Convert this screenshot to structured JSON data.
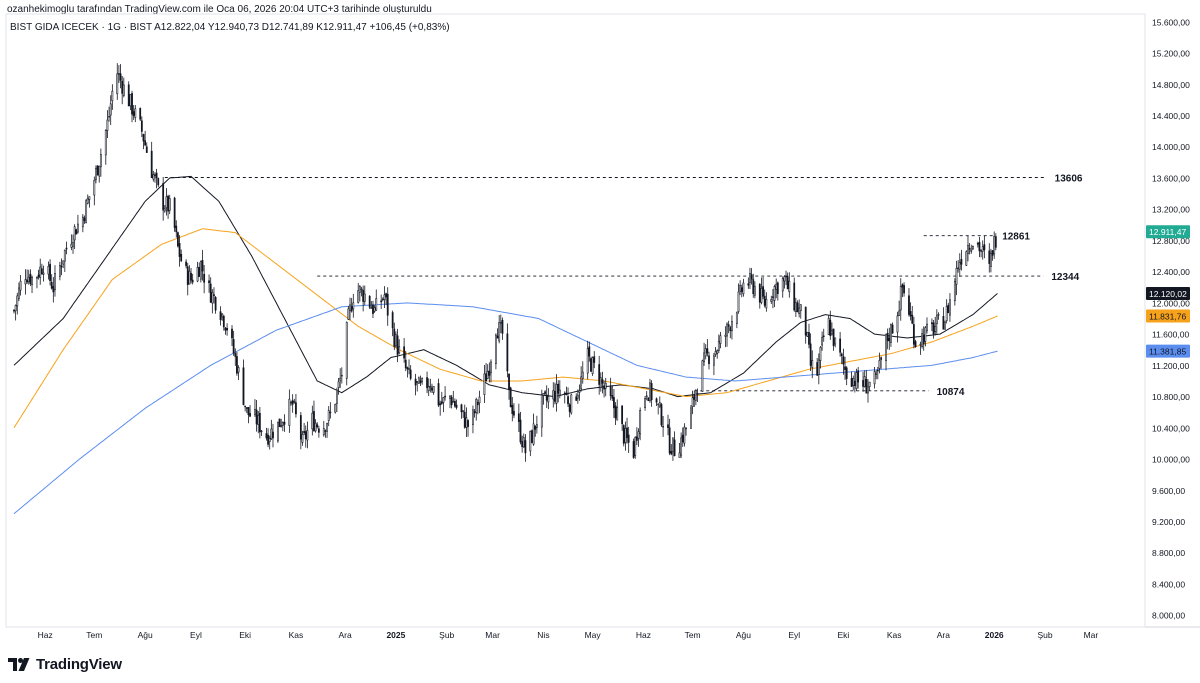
{
  "header": {
    "credit": "ozanhekimoglu tarafından TradingView.com ile Oca 06, 2026 20:04 UTC+3 tarihinde oluşturuldu",
    "symbol_line": "BIST GIDA ICECEK · 1G · BIST   A12.822,04   Y12.940,73   D12.741,89   K12.911,47   +106,45 (+0,83%)"
  },
  "brand": {
    "name": "TradingView"
  },
  "chart_data": {
    "type": "candlestick",
    "ylim": [
      7900,
      15700
    ],
    "x_range_days": [
      0,
      648
    ],
    "price_scale_ticks": [
      "15.600,00",
      "15.200,00",
      "14.800,00",
      "14.400,00",
      "14.000,00",
      "13.600,00",
      "13.200,00",
      "12.800,00",
      "12.400,00",
      "12.000,00",
      "11.600,00",
      "11.200,00",
      "10.800,00",
      "10.400,00",
      "10.000,00",
      "9.600,00",
      "9.200,00",
      "8.800,00",
      "8.400,00",
      "8.000,00"
    ],
    "price_scale_values": [
      15600,
      15200,
      14800,
      14400,
      14000,
      13600,
      13200,
      12800,
      12400,
      12000,
      11600,
      11200,
      10800,
      10400,
      10000,
      9600,
      9200,
      8800,
      8400,
      8000
    ],
    "time_labels": [
      {
        "label": "Haz",
        "day": 19,
        "bold": false
      },
      {
        "label": "Tem",
        "day": 49,
        "bold": false
      },
      {
        "label": "Ağu",
        "day": 80,
        "bold": false
      },
      {
        "label": "Eyl",
        "day": 111,
        "bold": false
      },
      {
        "label": "Eki",
        "day": 141,
        "bold": false
      },
      {
        "label": "Kas",
        "day": 172,
        "bold": false
      },
      {
        "label": "Ara",
        "day": 202,
        "bold": false
      },
      {
        "label": "2025",
        "day": 233,
        "bold": true
      },
      {
        "label": "Şub",
        "day": 264,
        "bold": false
      },
      {
        "label": "Mar",
        "day": 292,
        "bold": false
      },
      {
        "label": "Nis",
        "day": 323,
        "bold": false
      },
      {
        "label": "May",
        "day": 353,
        "bold": false
      },
      {
        "label": "Haz",
        "day": 384,
        "bold": false
      },
      {
        "label": "Tem",
        "day": 414,
        "bold": false
      },
      {
        "label": "Ağu",
        "day": 445,
        "bold": false
      },
      {
        "label": "Eyl",
        "day": 476,
        "bold": false
      },
      {
        "label": "Eki",
        "day": 506,
        "bold": false
      },
      {
        "label": "Kas",
        "day": 537,
        "bold": false
      },
      {
        "label": "Ara",
        "day": 567,
        "bold": false
      },
      {
        "label": "2026",
        "day": 598,
        "bold": true
      },
      {
        "label": "Şub",
        "day": 629,
        "bold": false
      },
      {
        "label": "Mar",
        "day": 657,
        "bold": false
      }
    ],
    "close_anchors": [
      {
        "day": 0,
        "value": 11900
      },
      {
        "day": 6,
        "value": 12400
      },
      {
        "day": 12,
        "value": 12300
      },
      {
        "day": 18,
        "value": 12500
      },
      {
        "day": 24,
        "value": 12200
      },
      {
        "day": 30,
        "value": 12600
      },
      {
        "day": 36,
        "value": 12900
      },
      {
        "day": 42,
        "value": 13100
      },
      {
        "day": 48,
        "value": 13500
      },
      {
        "day": 54,
        "value": 14000
      },
      {
        "day": 58,
        "value": 14400
      },
      {
        "day": 62,
        "value": 15000
      },
      {
        "day": 66,
        "value": 14800
      },
      {
        "day": 72,
        "value": 14500
      },
      {
        "day": 78,
        "value": 14200
      },
      {
        "day": 84,
        "value": 13700
      },
      {
        "day": 90,
        "value": 13300
      },
      {
        "day": 96,
        "value": 13200
      },
      {
        "day": 100,
        "value": 12700
      },
      {
        "day": 104,
        "value": 12400
      },
      {
        "day": 108,
        "value": 12300
      },
      {
        "day": 114,
        "value": 12500
      },
      {
        "day": 118,
        "value": 12200
      },
      {
        "day": 124,
        "value": 12000
      },
      {
        "day": 130,
        "value": 11700
      },
      {
        "day": 136,
        "value": 11200
      },
      {
        "day": 142,
        "value": 10600
      },
      {
        "day": 148,
        "value": 10500
      },
      {
        "day": 154,
        "value": 10300
      },
      {
        "day": 160,
        "value": 10400
      },
      {
        "day": 166,
        "value": 10600
      },
      {
        "day": 170,
        "value": 10700
      },
      {
        "day": 176,
        "value": 10200
      },
      {
        "day": 182,
        "value": 10500
      },
      {
        "day": 188,
        "value": 10400
      },
      {
        "day": 194,
        "value": 10600
      },
      {
        "day": 200,
        "value": 11100
      },
      {
        "day": 204,
        "value": 11800
      },
      {
        "day": 208,
        "value": 12200
      },
      {
        "day": 214,
        "value": 12100
      },
      {
        "day": 220,
        "value": 11900
      },
      {
        "day": 226,
        "value": 12100
      },
      {
        "day": 230,
        "value": 11700
      },
      {
        "day": 236,
        "value": 11300
      },
      {
        "day": 242,
        "value": 11000
      },
      {
        "day": 248,
        "value": 10900
      },
      {
        "day": 254,
        "value": 11000
      },
      {
        "day": 260,
        "value": 10700
      },
      {
        "day": 266,
        "value": 10800
      },
      {
        "day": 272,
        "value": 10600
      },
      {
        "day": 278,
        "value": 10400
      },
      {
        "day": 284,
        "value": 10800
      },
      {
        "day": 290,
        "value": 11200
      },
      {
        "day": 294,
        "value": 11700
      },
      {
        "day": 298,
        "value": 11600
      },
      {
        "day": 302,
        "value": 10800
      },
      {
        "day": 308,
        "value": 10400
      },
      {
        "day": 312,
        "value": 10100
      },
      {
        "day": 316,
        "value": 10300
      },
      {
        "day": 322,
        "value": 10700
      },
      {
        "day": 328,
        "value": 10800
      },
      {
        "day": 334,
        "value": 10900
      },
      {
        "day": 340,
        "value": 10700
      },
      {
        "day": 346,
        "value": 11000
      },
      {
        "day": 350,
        "value": 11300
      },
      {
        "day": 356,
        "value": 11100
      },
      {
        "day": 362,
        "value": 10800
      },
      {
        "day": 368,
        "value": 10600
      },
      {
        "day": 372,
        "value": 10300
      },
      {
        "day": 378,
        "value": 10100
      },
      {
        "day": 382,
        "value": 10600
      },
      {
        "day": 386,
        "value": 10900
      },
      {
        "day": 390,
        "value": 10800
      },
      {
        "day": 396,
        "value": 10500
      },
      {
        "day": 400,
        "value": 10200
      },
      {
        "day": 404,
        "value": 10100
      },
      {
        "day": 408,
        "value": 10300
      },
      {
        "day": 412,
        "value": 10500
      },
      {
        "day": 416,
        "value": 10900
      },
      {
        "day": 422,
        "value": 11300
      },
      {
        "day": 428,
        "value": 11400
      },
      {
        "day": 434,
        "value": 11600
      },
      {
        "day": 440,
        "value": 11900
      },
      {
        "day": 446,
        "value": 12300
      },
      {
        "day": 452,
        "value": 12200
      },
      {
        "day": 458,
        "value": 12000
      },
      {
        "day": 464,
        "value": 12200
      },
      {
        "day": 470,
        "value": 12300
      },
      {
        "day": 476,
        "value": 12000
      },
      {
        "day": 482,
        "value": 11800
      },
      {
        "day": 486,
        "value": 11200
      },
      {
        "day": 490,
        "value": 11100
      },
      {
        "day": 496,
        "value": 11800
      },
      {
        "day": 502,
        "value": 11400
      },
      {
        "day": 508,
        "value": 11100
      },
      {
        "day": 514,
        "value": 11000
      },
      {
        "day": 520,
        "value": 10950
      },
      {
        "day": 526,
        "value": 11000
      },
      {
        "day": 532,
        "value": 11500
      },
      {
        "day": 538,
        "value": 11800
      },
      {
        "day": 542,
        "value": 12200
      },
      {
        "day": 546,
        "value": 11900
      },
      {
        "day": 550,
        "value": 11500
      },
      {
        "day": 556,
        "value": 11600
      },
      {
        "day": 562,
        "value": 11700
      },
      {
        "day": 568,
        "value": 11800
      },
      {
        "day": 572,
        "value": 12100
      },
      {
        "day": 576,
        "value": 12500
      },
      {
        "day": 580,
        "value": 12700
      },
      {
        "day": 584,
        "value": 12800
      },
      {
        "day": 588,
        "value": 12750
      },
      {
        "day": 592,
        "value": 12600
      },
      {
        "day": 594,
        "value": 12300
      },
      {
        "day": 597,
        "value": 12700
      },
      {
        "day": 600,
        "value": 12911
      }
    ],
    "moving_averages": [
      {
        "name": "",
        "color": "#131722",
        "last": "12.120,02",
        "last_value": 12120.02,
        "anchors": [
          {
            "day": 0,
            "value": 11200
          },
          {
            "day": 30,
            "value": 11800
          },
          {
            "day": 60,
            "value": 12700
          },
          {
            "day": 80,
            "value": 13300
          },
          {
            "day": 95,
            "value": 13600
          },
          {
            "day": 108,
            "value": 13620
          },
          {
            "day": 125,
            "value": 13300
          },
          {
            "day": 145,
            "value": 12600
          },
          {
            "day": 165,
            "value": 11800
          },
          {
            "day": 185,
            "value": 11000
          },
          {
            "day": 200,
            "value": 10850
          },
          {
            "day": 215,
            "value": 11050
          },
          {
            "day": 230,
            "value": 11300
          },
          {
            "day": 250,
            "value": 11400
          },
          {
            "day": 270,
            "value": 11200
          },
          {
            "day": 290,
            "value": 10950
          },
          {
            "day": 310,
            "value": 10850
          },
          {
            "day": 330,
            "value": 10800
          },
          {
            "day": 350,
            "value": 10900
          },
          {
            "day": 370,
            "value": 10950
          },
          {
            "day": 390,
            "value": 10900
          },
          {
            "day": 405,
            "value": 10800
          },
          {
            "day": 425,
            "value": 10850
          },
          {
            "day": 445,
            "value": 11100
          },
          {
            "day": 465,
            "value": 11500
          },
          {
            "day": 480,
            "value": 11750
          },
          {
            "day": 495,
            "value": 11850
          },
          {
            "day": 510,
            "value": 11800
          },
          {
            "day": 525,
            "value": 11600
          },
          {
            "day": 545,
            "value": 11550
          },
          {
            "day": 565,
            "value": 11600
          },
          {
            "day": 585,
            "value": 11850
          },
          {
            "day": 600,
            "value": 12120
          }
        ]
      },
      {
        "name": "",
        "color": "#f7a21b",
        "last": "11.831,76",
        "last_value": 11831.76,
        "anchors": [
          {
            "day": 0,
            "value": 10400
          },
          {
            "day": 30,
            "value": 11400
          },
          {
            "day": 60,
            "value": 12300
          },
          {
            "day": 90,
            "value": 12750
          },
          {
            "day": 115,
            "value": 12950
          },
          {
            "day": 135,
            "value": 12900
          },
          {
            "day": 160,
            "value": 12500
          },
          {
            "day": 185,
            "value": 12100
          },
          {
            "day": 210,
            "value": 11700
          },
          {
            "day": 235,
            "value": 11400
          },
          {
            "day": 260,
            "value": 11150
          },
          {
            "day": 285,
            "value": 11000
          },
          {
            "day": 310,
            "value": 11000
          },
          {
            "day": 335,
            "value": 11050
          },
          {
            "day": 360,
            "value": 11000
          },
          {
            "day": 385,
            "value": 10900
          },
          {
            "day": 410,
            "value": 10800
          },
          {
            "day": 435,
            "value": 10850
          },
          {
            "day": 460,
            "value": 11000
          },
          {
            "day": 485,
            "value": 11150
          },
          {
            "day": 510,
            "value": 11250
          },
          {
            "day": 535,
            "value": 11350
          },
          {
            "day": 560,
            "value": 11500
          },
          {
            "day": 585,
            "value": 11700
          },
          {
            "day": 600,
            "value": 11832
          }
        ]
      },
      {
        "name": "",
        "color": "#5b8def",
        "last": "11.381,85",
        "last_value": 11381.85,
        "anchors": [
          {
            "day": 0,
            "value": 9300
          },
          {
            "day": 40,
            "value": 10000
          },
          {
            "day": 80,
            "value": 10650
          },
          {
            "day": 120,
            "value": 11200
          },
          {
            "day": 160,
            "value": 11650
          },
          {
            "day": 200,
            "value": 11950
          },
          {
            "day": 240,
            "value": 12000
          },
          {
            "day": 280,
            "value": 11950
          },
          {
            "day": 320,
            "value": 11800
          },
          {
            "day": 350,
            "value": 11500
          },
          {
            "day": 380,
            "value": 11200
          },
          {
            "day": 410,
            "value": 11050
          },
          {
            "day": 440,
            "value": 11000
          },
          {
            "day": 470,
            "value": 11050
          },
          {
            "day": 500,
            "value": 11100
          },
          {
            "day": 530,
            "value": 11150
          },
          {
            "day": 560,
            "value": 11200
          },
          {
            "day": 585,
            "value": 11300
          },
          {
            "day": 600,
            "value": 11382
          }
        ]
      }
    ],
    "horizontal_levels": [
      {
        "value": 13606,
        "label": "13606",
        "day_from": 92,
        "day_to": 630
      },
      {
        "value": 12861,
        "label": "12861",
        "day_from": 555,
        "day_to": 598
      },
      {
        "value": 12344,
        "label": "12344",
        "day_from": 185,
        "day_to": 628
      },
      {
        "value": 10874,
        "label": "10874",
        "day_from": 415,
        "day_to": 558
      }
    ],
    "last_price": {
      "value": 12911.47,
      "label": "12.911,47",
      "color": "#22ab94"
    },
    "grid": false,
    "colors": {
      "up": "#131722",
      "down": "#131722",
      "up_fill": "#ffffff",
      "down_fill": "#131722"
    }
  }
}
